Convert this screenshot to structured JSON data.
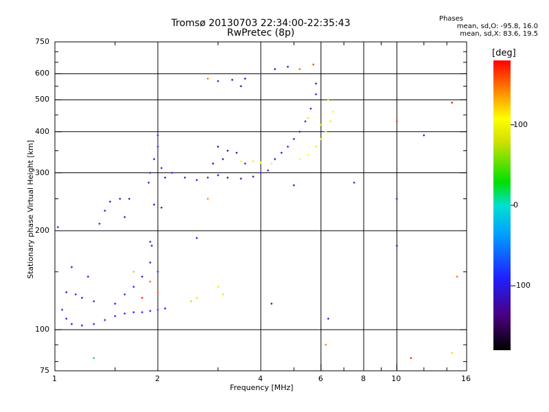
{
  "header": {
    "title_line1": "Tromsø 20130703 22:34:00-22:35:43",
    "title_line2": "RwPretec (8p)",
    "stats_title": "Phases",
    "stats_o": "mean, sd,O: -95.8, 16.0",
    "stats_x": "mean, sd,X:  83.6, 19.5"
  },
  "chart_data": {
    "type": "scatter",
    "title": "Tromsø 20130703 22:34:00-22:35:43 RwPretec (8p)",
    "xlabel": "Frequency [MHz]",
    "ylabel": "Stationary phase Virtual Height [km]",
    "xscale": "log",
    "yscale": "log",
    "xlim": [
      1,
      16
    ],
    "ylim": [
      75,
      750
    ],
    "xticks": [
      1,
      2,
      4,
      6,
      8,
      10,
      16
    ],
    "xtick_labels": [
      "1",
      "2",
      "4",
      "6",
      "8",
      "10",
      "16"
    ],
    "yticks": [
      75,
      100,
      200,
      300,
      400,
      500,
      600,
      750
    ],
    "ytick_labels": [
      "75",
      "100",
      "200",
      "300",
      "400",
      "500",
      "600",
      "750"
    ],
    "xgrid": [
      2,
      4,
      6,
      8,
      10
    ],
    "ygrid": [
      100,
      200,
      300,
      400,
      500,
      600
    ],
    "colorbar": {
      "label": "[deg]",
      "range": [
        -180,
        180
      ],
      "ticks": [
        100,
        0,
        -100
      ],
      "tick_labels": [
        "100",
        "0",
        "-100"
      ]
    },
    "points": [
      {
        "x": 1.05,
        "y": 115,
        "phase": -100
      },
      {
        "x": 1.08,
        "y": 108,
        "phase": -98
      },
      {
        "x": 1.12,
        "y": 104,
        "phase": -102
      },
      {
        "x": 1.2,
        "y": 103,
        "phase": -100
      },
      {
        "x": 1.3,
        "y": 104,
        "phase": -96
      },
      {
        "x": 1.4,
        "y": 107,
        "phase": -100
      },
      {
        "x": 1.5,
        "y": 110,
        "phase": -98
      },
      {
        "x": 1.6,
        "y": 112,
        "phase": -102
      },
      {
        "x": 1.7,
        "y": 113,
        "phase": -100
      },
      {
        "x": 1.8,
        "y": 113,
        "phase": -95
      },
      {
        "x": 1.9,
        "y": 114,
        "phase": -100
      },
      {
        "x": 2.0,
        "y": 115,
        "phase": -98
      },
      {
        "x": 2.1,
        "y": 116,
        "phase": -100
      },
      {
        "x": 1.08,
        "y": 130,
        "phase": -105
      },
      {
        "x": 1.15,
        "y": 128,
        "phase": -100
      },
      {
        "x": 1.2,
        "y": 125,
        "phase": -98
      },
      {
        "x": 1.3,
        "y": 122,
        "phase": -102
      },
      {
        "x": 1.5,
        "y": 120,
        "phase": -95
      },
      {
        "x": 1.6,
        "y": 128,
        "phase": -100
      },
      {
        "x": 1.7,
        "y": 135,
        "phase": -98
      },
      {
        "x": 1.8,
        "y": 145,
        "phase": -100
      },
      {
        "x": 1.9,
        "y": 160,
        "phase": -100
      },
      {
        "x": 2.0,
        "y": 150,
        "phase": -102
      },
      {
        "x": 1.12,
        "y": 155,
        "phase": -105
      },
      {
        "x": 1.25,
        "y": 145,
        "phase": -100
      },
      {
        "x": 1.9,
        "y": 185,
        "phase": -100
      },
      {
        "x": 1.92,
        "y": 180,
        "phase": -98
      },
      {
        "x": 1.35,
        "y": 210,
        "phase": -110
      },
      {
        "x": 1.4,
        "y": 230,
        "phase": -105
      },
      {
        "x": 1.45,
        "y": 245,
        "phase": -100
      },
      {
        "x": 1.55,
        "y": 250,
        "phase": -102
      },
      {
        "x": 1.65,
        "y": 250,
        "phase": -98
      },
      {
        "x": 1.6,
        "y": 220,
        "phase": -100
      },
      {
        "x": 1.02,
        "y": 205,
        "phase": -100
      },
      {
        "x": 1.88,
        "y": 280,
        "phase": -100
      },
      {
        "x": 1.9,
        "y": 300,
        "phase": -95
      },
      {
        "x": 1.95,
        "y": 330,
        "phase": -100
      },
      {
        "x": 2.0,
        "y": 360,
        "phase": -102
      },
      {
        "x": 2.0,
        "y": 390,
        "phase": -100
      },
      {
        "x": 2.05,
        "y": 310,
        "phase": -98
      },
      {
        "x": 2.1,
        "y": 290,
        "phase": -100
      },
      {
        "x": 1.95,
        "y": 240,
        "phase": -100
      },
      {
        "x": 2.05,
        "y": 235,
        "phase": -102
      },
      {
        "x": 2.2,
        "y": 300,
        "phase": -95
      },
      {
        "x": 2.4,
        "y": 290,
        "phase": -98
      },
      {
        "x": 2.6,
        "y": 285,
        "phase": -100
      },
      {
        "x": 2.8,
        "y": 290,
        "phase": -110
      },
      {
        "x": 3.0,
        "y": 295,
        "phase": -120
      },
      {
        "x": 3.2,
        "y": 290,
        "phase": -125
      },
      {
        "x": 3.5,
        "y": 288,
        "phase": -120
      },
      {
        "x": 3.8,
        "y": 292,
        "phase": -115
      },
      {
        "x": 4.0,
        "y": 300,
        "phase": -110
      },
      {
        "x": 4.2,
        "y": 305,
        "phase": -105
      },
      {
        "x": 2.9,
        "y": 320,
        "phase": -125
      },
      {
        "x": 3.1,
        "y": 330,
        "phase": -120
      },
      {
        "x": 3.0,
        "y": 360,
        "phase": -130
      },
      {
        "x": 3.2,
        "y": 350,
        "phase": -125
      },
      {
        "x": 3.4,
        "y": 345,
        "phase": -120
      },
      {
        "x": 3.6,
        "y": 320,
        "phase": -118
      },
      {
        "x": 3.5,
        "y": 325,
        "phase": 110
      },
      {
        "x": 3.8,
        "y": 325,
        "phase": 115
      },
      {
        "x": 4.0,
        "y": 322,
        "phase": 105
      },
      {
        "x": 4.3,
        "y": 320,
        "phase": 100
      },
      {
        "x": 4.4,
        "y": 330,
        "phase": -100
      },
      {
        "x": 4.6,
        "y": 345,
        "phase": -105
      },
      {
        "x": 4.8,
        "y": 360,
        "phase": -100
      },
      {
        "x": 5.0,
        "y": 380,
        "phase": -102
      },
      {
        "x": 5.2,
        "y": 400,
        "phase": -98
      },
      {
        "x": 5.4,
        "y": 430,
        "phase": -100
      },
      {
        "x": 5.6,
        "y": 470,
        "phase": -100
      },
      {
        "x": 5.8,
        "y": 520,
        "phase": -102
      },
      {
        "x": 5.8,
        "y": 560,
        "phase": -100
      },
      {
        "x": 5.2,
        "y": 330,
        "phase": 105
      },
      {
        "x": 5.5,
        "y": 340,
        "phase": 110
      },
      {
        "x": 5.8,
        "y": 360,
        "phase": 100
      },
      {
        "x": 6.0,
        "y": 380,
        "phase": 95
      },
      {
        "x": 6.2,
        "y": 400,
        "phase": 105
      },
      {
        "x": 6.4,
        "y": 430,
        "phase": 100
      },
      {
        "x": 6.5,
        "y": 460,
        "phase": 110
      },
      {
        "x": 6.0,
        "y": 420,
        "phase": 80
      },
      {
        "x": 5.5,
        "y": 440,
        "phase": 90
      },
      {
        "x": 6.3,
        "y": 500,
        "phase": 120
      },
      {
        "x": 3.0,
        "y": 570,
        "phase": -105
      },
      {
        "x": 3.3,
        "y": 575,
        "phase": -120
      },
      {
        "x": 3.6,
        "y": 580,
        "phase": -110
      },
      {
        "x": 4.0,
        "y": 600,
        "phase": -100
      },
      {
        "x": 4.4,
        "y": 620,
        "phase": -110
      },
      {
        "x": 4.8,
        "y": 630,
        "phase": -100
      },
      {
        "x": 5.2,
        "y": 620,
        "phase": 150
      },
      {
        "x": 5.7,
        "y": 640,
        "phase": 160
      },
      {
        "x": 3.5,
        "y": 550,
        "phase": -120
      },
      {
        "x": 2.8,
        "y": 580,
        "phase": 150
      },
      {
        "x": 2.6,
        "y": 125,
        "phase": 90
      },
      {
        "x": 3.0,
        "y": 135,
        "phase": 95
      },
      {
        "x": 3.1,
        "y": 128,
        "phase": 85
      },
      {
        "x": 2.5,
        "y": 122,
        "phase": 80
      },
      {
        "x": 1.9,
        "y": 140,
        "phase": 150
      },
      {
        "x": 1.7,
        "y": 150,
        "phase": 130
      },
      {
        "x": 1.8,
        "y": 125,
        "phase": 170
      },
      {
        "x": 2.0,
        "y": 130,
        "phase": 160
      },
      {
        "x": 10.0,
        "y": 430,
        "phase": 170
      },
      {
        "x": 10.0,
        "y": 250,
        "phase": -105
      },
      {
        "x": 10.0,
        "y": 180,
        "phase": -110
      },
      {
        "x": 12.0,
        "y": 390,
        "phase": -120
      },
      {
        "x": 7.5,
        "y": 280,
        "phase": -100
      },
      {
        "x": 14.5,
        "y": 490,
        "phase": 175
      },
      {
        "x": 15.0,
        "y": 145,
        "phase": 150
      },
      {
        "x": 11.0,
        "y": 82,
        "phase": 170
      },
      {
        "x": 14.5,
        "y": 85,
        "phase": 120
      },
      {
        "x": 6.2,
        "y": 90,
        "phase": 150
      },
      {
        "x": 1.3,
        "y": 82,
        "phase": 20
      },
      {
        "x": 4.3,
        "y": 120,
        "phase": -100
      },
      {
        "x": 6.3,
        "y": 108,
        "phase": -100
      },
      {
        "x": 2.6,
        "y": 190,
        "phase": -100
      },
      {
        "x": 5.0,
        "y": 275,
        "phase": -100
      },
      {
        "x": 2.8,
        "y": 250,
        "phase": 140
      }
    ]
  }
}
